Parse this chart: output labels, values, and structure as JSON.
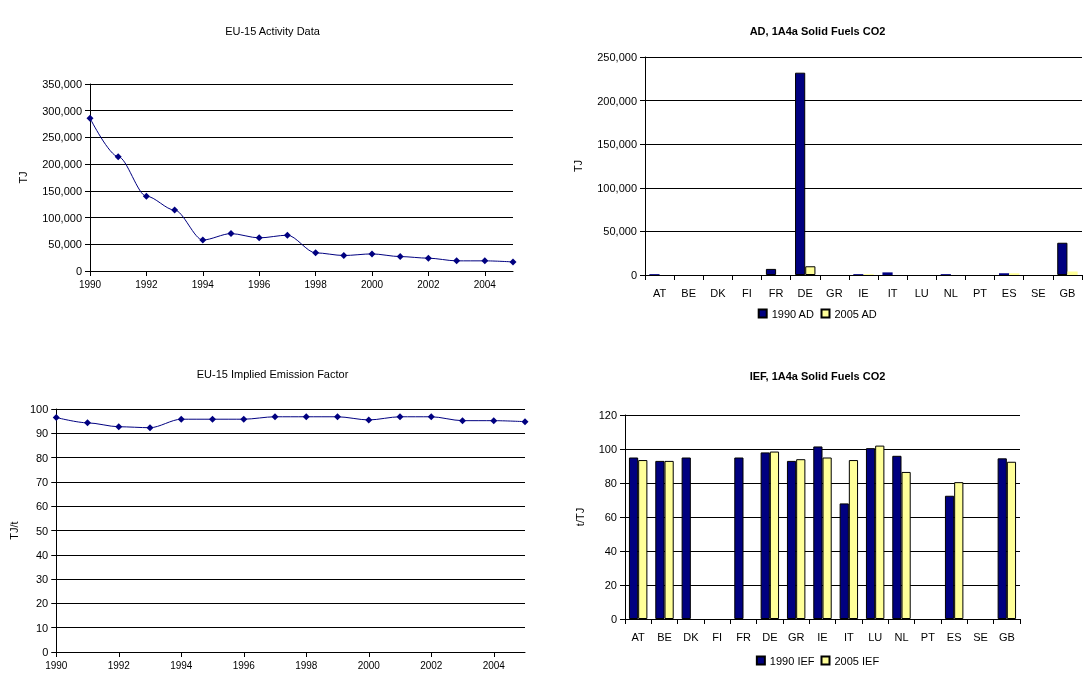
{
  "chart_data": [
    {
      "type": "line",
      "title": "EU-15 Activity Data",
      "ylabel": "TJ",
      "marker": "diamond",
      "grid": "y",
      "x": [
        1990,
        1991,
        1992,
        1993,
        1994,
        1995,
        1996,
        1997,
        1998,
        1999,
        2000,
        2001,
        2002,
        2003,
        2004,
        2005
      ],
      "series": [
        {
          "color": "#000080",
          "values": [
            286000,
            214000,
            140000,
            114000,
            58000,
            70000,
            62000,
            67000,
            34000,
            29000,
            32000,
            27000,
            24000,
            19000,
            19000,
            17000
          ]
        }
      ],
      "xlim": [
        1990,
        2005
      ],
      "xticks": [
        1990,
        1992,
        1994,
        1996,
        1998,
        2000,
        2002,
        2004
      ],
      "ylim": [
        0,
        350000
      ],
      "yticks": [
        0,
        {
          "value": 50000,
          "label": "50,000"
        },
        {
          "value": 100000,
          "label": "100,000"
        },
        {
          "value": 150000,
          "label": "150,000"
        },
        {
          "value": 200000,
          "label": "200,000"
        },
        {
          "value": 250000,
          "label": "250,000"
        },
        {
          "value": 300000,
          "label": "300,000"
        },
        {
          "value": 350000,
          "label": "350,000"
        }
      ]
    },
    {
      "type": "bar",
      "title": "AD, 1A4a Solid Fuels CO2",
      "ylabel": "TJ",
      "grid": "y",
      "legend": "bottom",
      "categories": [
        "AT",
        "BE",
        "DK",
        "FI",
        "FR",
        "DE",
        "GR",
        "IE",
        "IT",
        "LU",
        "NL",
        "PT",
        "ES",
        "SE",
        "GB"
      ],
      "series": [
        {
          "name": "1990 AD",
          "color": "#000080",
          "values": [
            1000,
            null,
            null,
            null,
            7000,
            232000,
            null,
            1000,
            3000,
            null,
            1000,
            null,
            2000,
            null,
            37000
          ]
        },
        {
          "name": "2005 AD",
          "color": "#ffff99",
          "values": [
            null,
            null,
            null,
            null,
            null,
            10000,
            null,
            1000,
            null,
            null,
            null,
            null,
            2000,
            null,
            4000
          ]
        }
      ],
      "ylim": [
        0,
        250000
      ],
      "yticks": [
        0,
        {
          "value": 50000,
          "label": "50,000"
        },
        {
          "value": 100000,
          "label": "100,000"
        },
        {
          "value": 150000,
          "label": "150,000"
        },
        {
          "value": 200000,
          "label": "200,000"
        },
        {
          "value": 250000,
          "label": "250,000"
        }
      ]
    },
    {
      "type": "line",
      "title": "EU-15 Implied Emission Factor",
      "ylabel": "TJ/t",
      "marker": "diamond",
      "grid": "y",
      "x": [
        1990,
        1991,
        1992,
        1993,
        1994,
        1995,
        1996,
        1997,
        1998,
        1999,
        2000,
        2001,
        2002,
        2003,
        2004,
        2005
      ],
      "series": [
        {
          "color": "#000080",
          "values": [
            96.5,
            94.3,
            92.7,
            92.3,
            95.8,
            95.8,
            95.8,
            96.8,
            96.8,
            96.8,
            95.5,
            96.8,
            96.8,
            95.2,
            95.2,
            94.8
          ]
        }
      ],
      "xlim": [
        1990,
        2005
      ],
      "xticks": [
        1990,
        1992,
        1994,
        1996,
        1998,
        2000,
        2002,
        2004
      ],
      "ylim": [
        0,
        100
      ],
      "yticks": [
        0,
        10,
        20,
        30,
        40,
        50,
        60,
        70,
        80,
        90,
        100
      ]
    },
    {
      "type": "bar",
      "title": "IEF, 1A4a Solid Fuels CO2",
      "ylabel": "t/TJ",
      "grid": "y",
      "legend": "bottom",
      "categories": [
        "AT",
        "BE",
        "DK",
        "FI",
        "FR",
        "DE",
        "GR",
        "IE",
        "IT",
        "LU",
        "NL",
        "PT",
        "ES",
        "SE",
        "GB"
      ],
      "series": [
        {
          "name": "1990 IEF",
          "color": "#000080",
          "values": [
            95,
            93,
            95,
            null,
            95,
            98,
            93,
            101.5,
            68,
            100.5,
            96,
            null,
            72.5,
            null,
            94.5
          ]
        },
        {
          "name": "2005 IEF",
          "color": "#ffff99",
          "values": [
            93.5,
            93,
            null,
            null,
            null,
            98.5,
            94,
            95,
            93.5,
            102,
            86.5,
            null,
            80.5,
            null,
            92.5
          ]
        }
      ],
      "ylim": [
        0,
        120
      ],
      "yticks": [
        0,
        20,
        40,
        60,
        80,
        100,
        120
      ]
    }
  ]
}
